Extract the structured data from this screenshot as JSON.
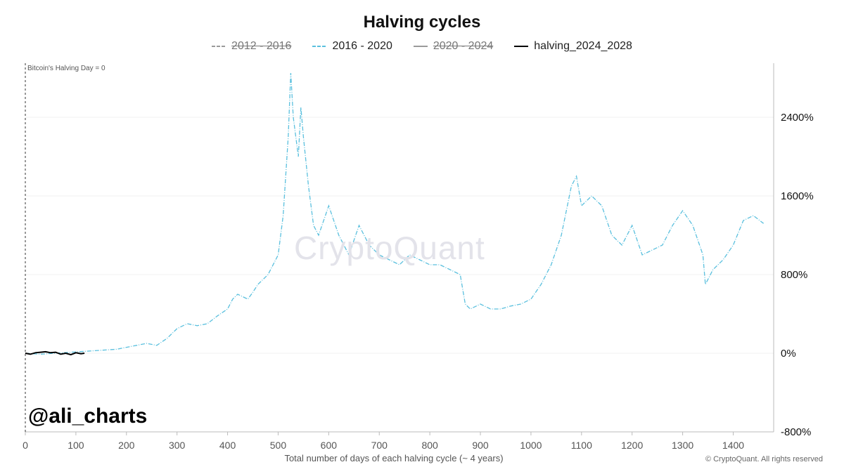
{
  "chart_data": {
    "type": "line",
    "title": "Halving cycles",
    "xlabel": "Total number of days of each halving cycle (~ 4 years)",
    "ylabel": "",
    "xlim": [
      0,
      1480
    ],
    "ylim": [
      -800,
      2950
    ],
    "x_ticks": [
      "0",
      "100",
      "200",
      "300",
      "400",
      "500",
      "600",
      "700",
      "800",
      "900",
      "1000",
      "1100",
      "1200",
      "1300",
      "1400"
    ],
    "y_ticks": [
      "2400%",
      "1600%",
      "800%",
      "0%",
      "-800%"
    ],
    "legend_position": "top-center",
    "series": [
      {
        "name": "2012 - 2016",
        "hidden": true,
        "color": "#4a4f5c",
        "style": "dashdot",
        "x": [],
        "y": []
      },
      {
        "name": "2016 - 2020",
        "hidden": false,
        "color": "#5bc0de",
        "style": "dashdot",
        "x": [
          0,
          30,
          60,
          90,
          120,
          150,
          180,
          200,
          220,
          240,
          260,
          280,
          300,
          320,
          340,
          360,
          380,
          400,
          410,
          420,
          440,
          450,
          460,
          480,
          500,
          510,
          520,
          525,
          530,
          540,
          545,
          550,
          560,
          570,
          580,
          600,
          620,
          640,
          660,
          680,
          700,
          720,
          740,
          760,
          780,
          800,
          820,
          840,
          860,
          870,
          880,
          900,
          920,
          940,
          960,
          980,
          1000,
          1020,
          1040,
          1060,
          1080,
          1090,
          1100,
          1120,
          1140,
          1160,
          1180,
          1200,
          1220,
          1240,
          1260,
          1280,
          1300,
          1320,
          1340,
          1345,
          1360,
          1380,
          1400,
          1420,
          1440,
          1460
        ],
        "y": [
          0,
          -10,
          0,
          10,
          20,
          30,
          40,
          60,
          80,
          100,
          80,
          150,
          250,
          300,
          280,
          300,
          380,
          450,
          550,
          600,
          550,
          620,
          700,
          800,
          1000,
          1400,
          2200,
          2850,
          2400,
          2000,
          2500,
          2200,
          1700,
          1300,
          1200,
          1500,
          1200,
          1000,
          1300,
          1100,
          1000,
          950,
          900,
          1000,
          950,
          900,
          900,
          850,
          800,
          500,
          450,
          500,
          450,
          450,
          480,
          500,
          550,
          700,
          900,
          1200,
          1700,
          1800,
          1500,
          1600,
          1500,
          1200,
          1100,
          1300,
          1000,
          1050,
          1100,
          1300,
          1450,
          1300,
          1000,
          700,
          850,
          950,
          1100,
          1350,
          1400,
          1320
        ]
      },
      {
        "name": "2020 - 2024",
        "hidden": true,
        "color": "#8a8f98",
        "style": "solid",
        "x": [],
        "y": []
      },
      {
        "name": "halving_2024_2028",
        "hidden": false,
        "color": "#000000",
        "style": "solid",
        "x": [
          0,
          10,
          20,
          30,
          40,
          50,
          60,
          70,
          80,
          90,
          100,
          110,
          117
        ],
        "y": [
          0,
          -10,
          5,
          10,
          15,
          5,
          10,
          -10,
          0,
          -15,
          5,
          -5,
          0
        ]
      }
    ],
    "annotations": {
      "halving_marker": "Bitcoin's Halving Day = 0",
      "handle": "@ali_charts",
      "watermark": "CryptoQuant",
      "copyright": "© CryptoQuant. All rights reserved"
    }
  }
}
